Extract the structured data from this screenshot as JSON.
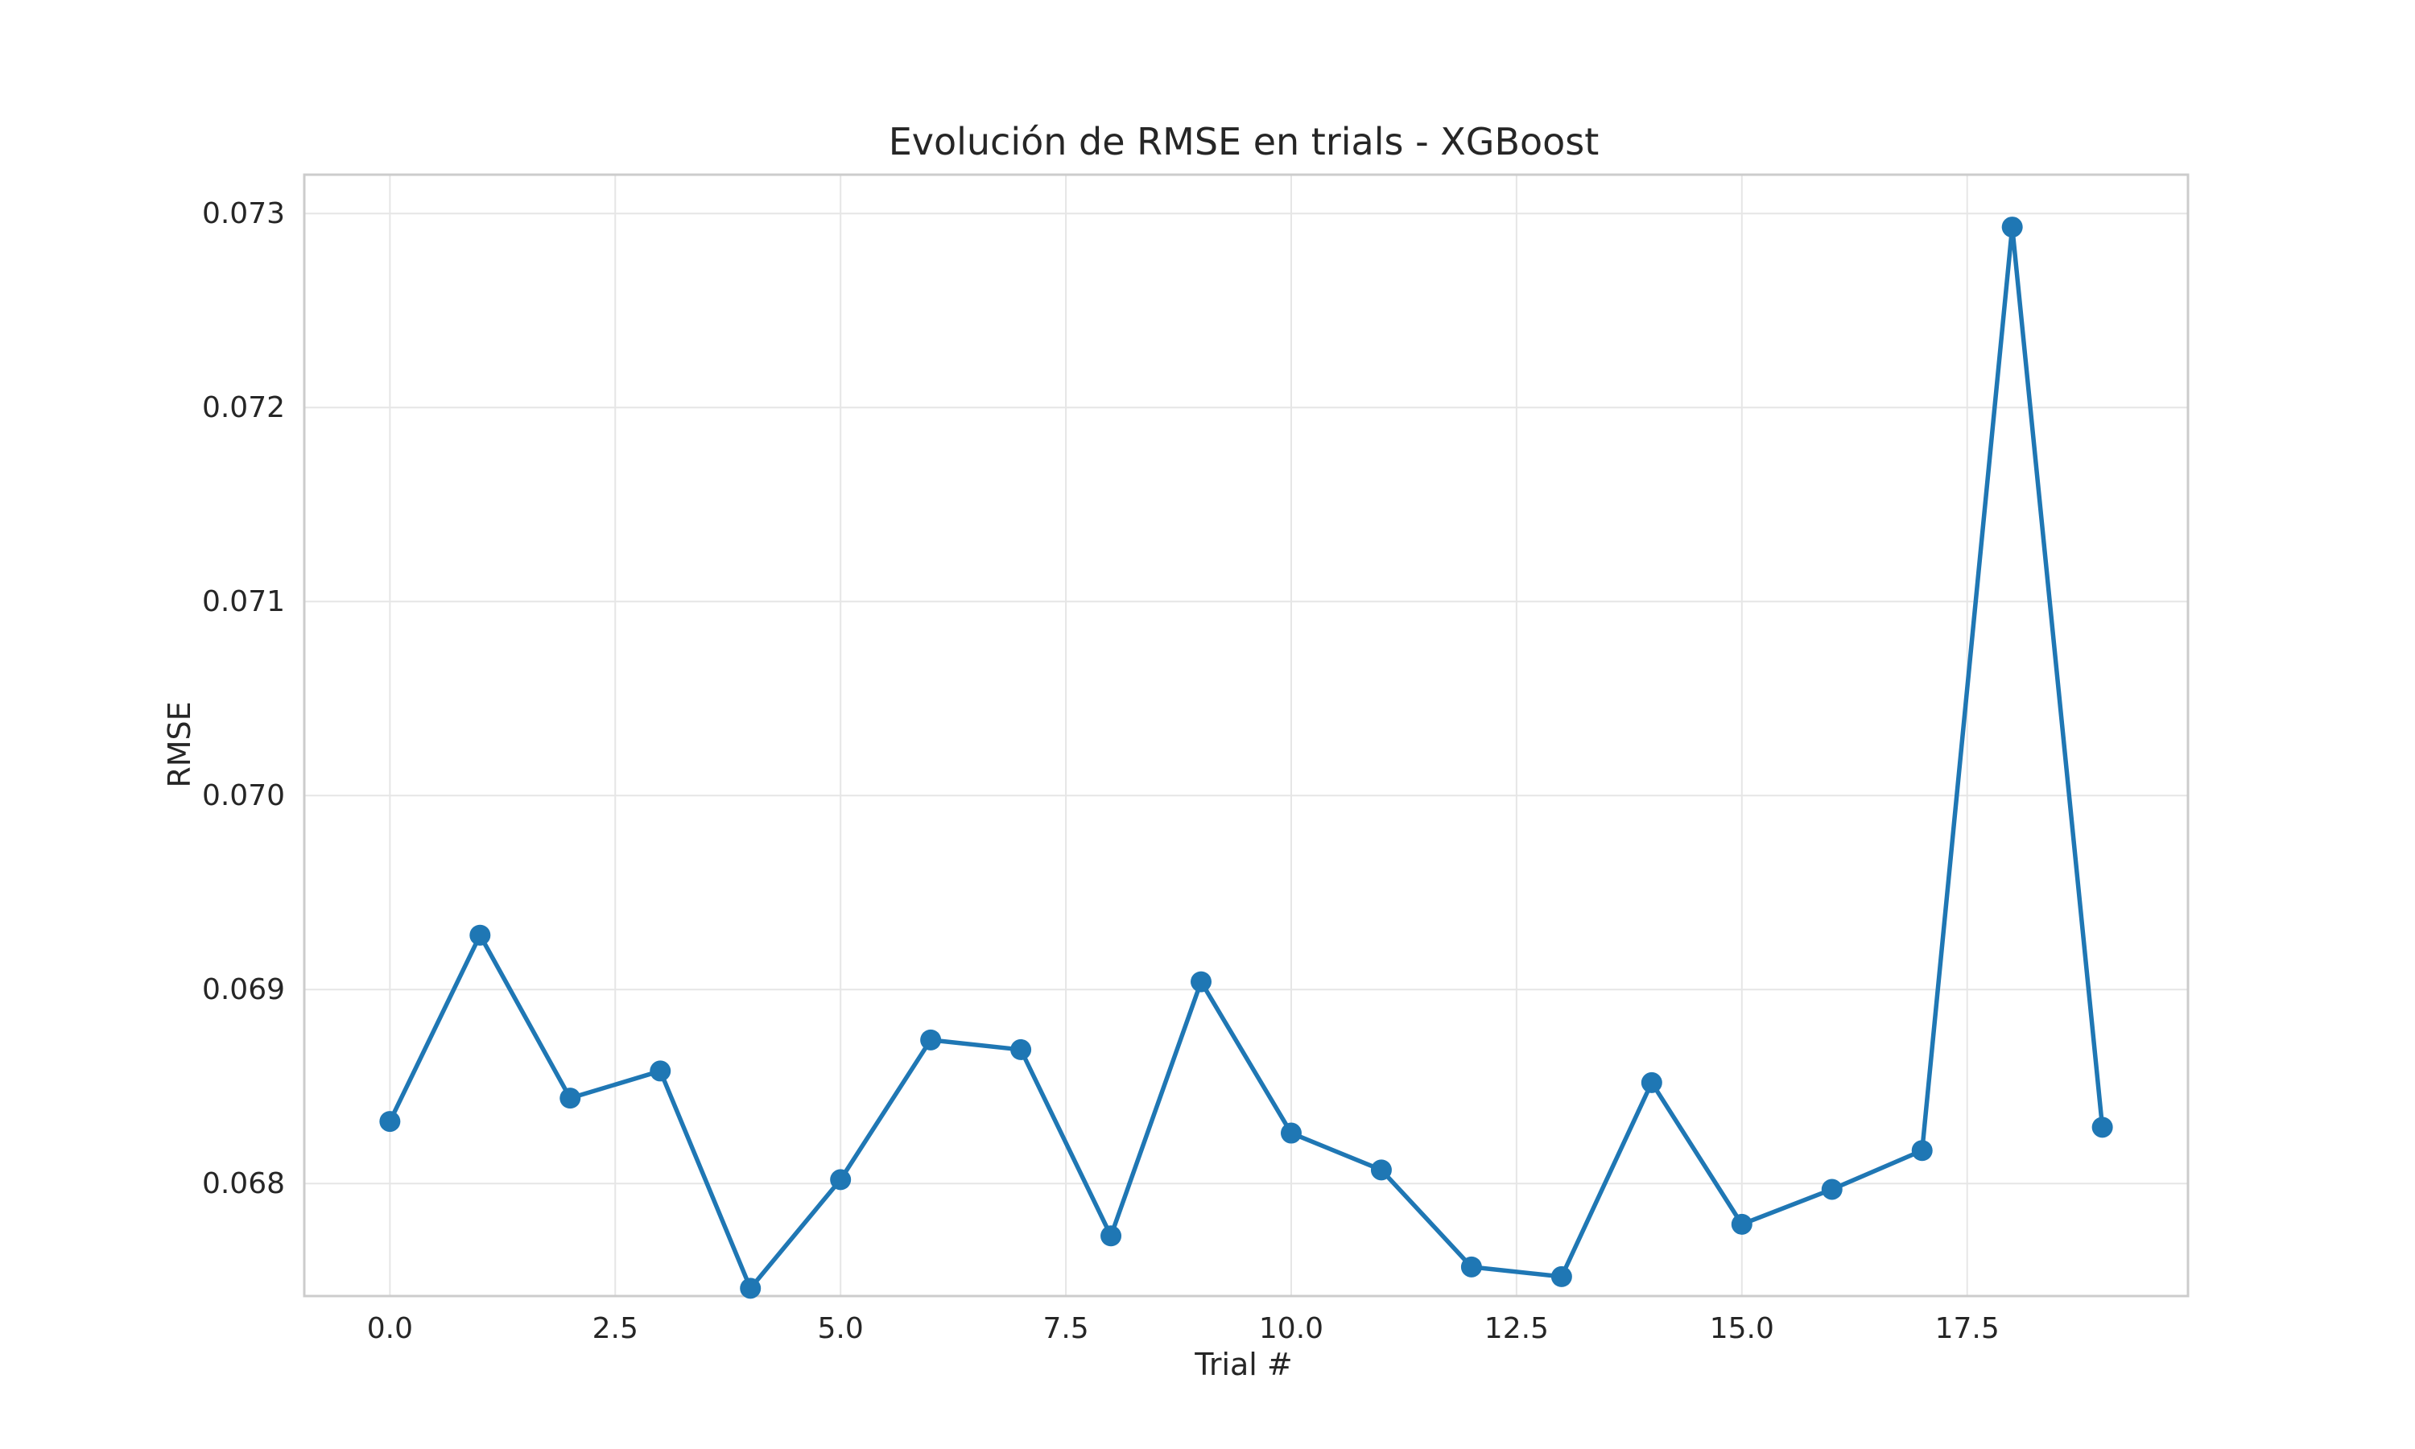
{
  "chart_data": {
    "type": "line",
    "title": "Evolución de RMSE en trials - XGBoost",
    "xlabel": "Trial #",
    "ylabel": "RMSE",
    "xlim": [
      -0.95,
      19.95
    ],
    "ylim": [
      0.06742,
      0.0732
    ],
    "x_ticks": [
      0.0,
      2.5,
      5.0,
      7.5,
      10.0,
      12.5,
      15.0,
      17.5
    ],
    "x_tick_labels": [
      "0.0",
      "2.5",
      "5.0",
      "7.5",
      "10.0",
      "12.5",
      "15.0",
      "17.5"
    ],
    "y_ticks": [
      0.068,
      0.069,
      0.07,
      0.071,
      0.072,
      0.073
    ],
    "y_tick_labels": [
      "0.068",
      "0.069",
      "0.070",
      "0.071",
      "0.072",
      "0.073"
    ],
    "grid": true,
    "colors": {
      "line": "#1f77b4",
      "grid": "#e6e6e6",
      "spine": "#cccccc"
    },
    "series": [
      {
        "x": [
          0,
          1,
          2,
          3,
          4,
          5,
          6,
          7,
          8,
          9,
          10,
          11,
          12,
          13,
          14,
          15,
          16,
          17,
          18,
          19
        ],
        "values": [
          0.06832,
          0.06928,
          0.06844,
          0.06858,
          0.06746,
          0.06802,
          0.06874,
          0.06869,
          0.06773,
          0.06904,
          0.06826,
          0.06807,
          0.06757,
          0.06752,
          0.06852,
          0.06779,
          0.06797,
          0.06817,
          0.07293,
          0.06829
        ]
      }
    ]
  }
}
